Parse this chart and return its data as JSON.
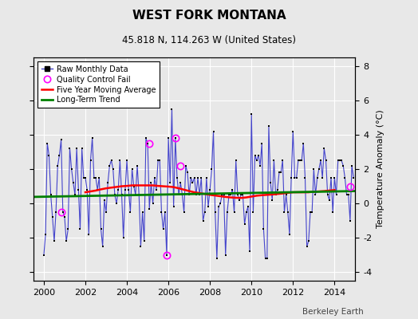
{
  "title": "WEST FORK MONTANA",
  "subtitle": "45.818 N, 114.263 W (United States)",
  "ylabel": "Temperature Anomaly (°C)",
  "attribution": "Berkeley Earth",
  "xlim": [
    1999.5,
    2015.0
  ],
  "ylim": [
    -4.5,
    8.5
  ],
  "yticks": [
    -4,
    -2,
    0,
    2,
    4,
    6,
    8
  ],
  "xticks": [
    2000,
    2002,
    2004,
    2006,
    2008,
    2010,
    2012,
    2014
  ],
  "bg_color": "#e8e8e8",
  "plot_bg_color": "#e8e8e8",
  "grid_color": "white",
  "raw_line_color": "#4444cc",
  "raw_marker_color": "black",
  "ma_color": "red",
  "trend_color": "green",
  "qc_fail_color": "magenta",
  "raw_months": [
    2000.0,
    2000.083,
    2000.167,
    2000.25,
    2000.333,
    2000.417,
    2000.5,
    2000.583,
    2000.667,
    2000.75,
    2000.833,
    2000.917,
    2001.0,
    2001.083,
    2001.167,
    2001.25,
    2001.333,
    2001.417,
    2001.5,
    2001.583,
    2001.667,
    2001.75,
    2001.833,
    2001.917,
    2002.0,
    2002.083,
    2002.167,
    2002.25,
    2002.333,
    2002.417,
    2002.5,
    2002.583,
    2002.667,
    2002.75,
    2002.833,
    2002.917,
    2003.0,
    2003.083,
    2003.167,
    2003.25,
    2003.333,
    2003.417,
    2003.5,
    2003.583,
    2003.667,
    2003.75,
    2003.833,
    2003.917,
    2004.0,
    2004.083,
    2004.167,
    2004.25,
    2004.333,
    2004.417,
    2004.5,
    2004.583,
    2004.667,
    2004.75,
    2004.833,
    2004.917,
    2005.0,
    2005.083,
    2005.167,
    2005.25,
    2005.333,
    2005.417,
    2005.5,
    2005.583,
    2005.667,
    2005.75,
    2005.833,
    2005.917,
    2006.0,
    2006.083,
    2006.167,
    2006.25,
    2006.333,
    2006.417,
    2006.5,
    2006.583,
    2006.667,
    2006.75,
    2006.833,
    2006.917,
    2007.0,
    2007.083,
    2007.167,
    2007.25,
    2007.333,
    2007.417,
    2007.5,
    2007.583,
    2007.667,
    2007.75,
    2007.833,
    2007.917,
    2008.0,
    2008.083,
    2008.167,
    2008.25,
    2008.333,
    2008.417,
    2008.5,
    2008.583,
    2008.667,
    2008.75,
    2008.833,
    2008.917,
    2009.0,
    2009.083,
    2009.167,
    2009.25,
    2009.333,
    2009.417,
    2009.5,
    2009.583,
    2009.667,
    2009.75,
    2009.833,
    2009.917,
    2010.0,
    2010.083,
    2010.167,
    2010.25,
    2010.333,
    2010.417,
    2010.5,
    2010.583,
    2010.667,
    2010.75,
    2010.833,
    2010.917,
    2011.0,
    2011.083,
    2011.167,
    2011.25,
    2011.333,
    2011.417,
    2011.5,
    2011.583,
    2011.667,
    2011.75,
    2011.833,
    2011.917,
    2012.0,
    2012.083,
    2012.167,
    2012.25,
    2012.333,
    2012.417,
    2012.5,
    2012.583,
    2012.667,
    2012.75,
    2012.833,
    2012.917,
    2013.0,
    2013.083,
    2013.167,
    2013.25,
    2013.333,
    2013.417,
    2013.5,
    2013.583,
    2013.667,
    2013.75,
    2013.833,
    2013.917,
    2014.0,
    2014.083,
    2014.167,
    2014.25,
    2014.333,
    2014.417,
    2014.5,
    2014.583,
    2014.667,
    2014.75,
    2014.833,
    2014.917
  ],
  "raw_values": [
    -3.0,
    -1.8,
    3.5,
    2.8,
    0.5,
    -0.8,
    -2.2,
    -0.5,
    2.2,
    2.8,
    3.7,
    -0.5,
    -0.8,
    -2.2,
    -1.5,
    3.2,
    2.0,
    1.2,
    0.5,
    3.2,
    0.8,
    -1.5,
    3.2,
    1.5,
    1.5,
    0.8,
    -1.8,
    2.5,
    3.8,
    1.5,
    1.5,
    0.8,
    1.5,
    -1.5,
    -2.5,
    0.2,
    -0.5,
    1.2,
    2.2,
    2.5,
    2.0,
    0.5,
    0.0,
    0.8,
    2.5,
    0.5,
    -2.0,
    0.8,
    2.5,
    0.8,
    -0.5,
    2.0,
    1.0,
    0.5,
    2.2,
    0.5,
    -2.5,
    -0.5,
    -2.2,
    3.8,
    3.5,
    -0.3,
    1.2,
    0.0,
    1.5,
    0.8,
    2.5,
    2.5,
    -0.5,
    -1.5,
    -0.5,
    -3.0,
    3.8,
    1.2,
    5.5,
    -0.2,
    3.8,
    1.5,
    0.5,
    1.2,
    0.5,
    -0.5,
    2.2,
    1.8,
    0.5,
    1.5,
    1.2,
    1.5,
    0.5,
    1.5,
    0.5,
    1.5,
    -1.0,
    -0.5,
    1.5,
    -0.2,
    0.8,
    2.0,
    4.2,
    -0.5,
    -3.2,
    -0.2,
    0.0,
    0.5,
    0.5,
    -3.0,
    -0.5,
    0.5,
    0.5,
    0.8,
    -0.5,
    2.5,
    0.5,
    0.2,
    0.5,
    0.5,
    -1.2,
    -0.5,
    -0.2,
    -2.8,
    5.2,
    -0.5,
    2.8,
    2.5,
    2.8,
    2.2,
    3.5,
    -1.5,
    -3.2,
    -3.2,
    4.5,
    1.2,
    0.2,
    2.5,
    0.5,
    0.8,
    1.8,
    1.8,
    2.5,
    -0.5,
    0.5,
    -0.5,
    -1.8,
    1.5,
    4.2,
    1.5,
    1.5,
    2.5,
    2.5,
    2.5,
    3.5,
    1.5,
    -2.5,
    -2.2,
    -0.5,
    -0.5,
    2.0,
    0.5,
    1.5,
    2.0,
    2.5,
    1.5,
    3.2,
    2.5,
    0.5,
    0.2,
    1.5,
    -0.5,
    1.5,
    0.5,
    2.5,
    2.5,
    2.5,
    2.2,
    1.5,
    0.5,
    0.5,
    -1.0,
    2.2,
    1.5
  ],
  "qc_fail_times": [
    2000.833,
    2005.083,
    2005.917,
    2006.333,
    2006.583,
    2014.75
  ],
  "qc_fail_values": [
    -0.5,
    3.5,
    -3.0,
    3.8,
    2.2,
    1.0
  ],
  "ma_times": [
    2002.0,
    2002.25,
    2002.5,
    2002.75,
    2003.0,
    2003.25,
    2003.5,
    2003.75,
    2004.0,
    2004.25,
    2004.5,
    2004.75,
    2005.0,
    2005.25,
    2005.5,
    2005.75,
    2006.0,
    2006.25,
    2006.5,
    2006.75,
    2007.0,
    2007.25,
    2007.5,
    2007.75,
    2008.0,
    2008.25,
    2008.5,
    2008.75,
    2009.0,
    2009.25,
    2009.5,
    2009.75,
    2010.0,
    2010.25,
    2010.5,
    2010.75,
    2011.0,
    2011.25,
    2011.5,
    2011.75,
    2012.0,
    2012.25,
    2012.5,
    2012.75,
    2013.0,
    2013.25,
    2013.5,
    2013.75,
    2014.0
  ],
  "ma_values": [
    0.65,
    0.7,
    0.75,
    0.82,
    0.88,
    0.92,
    0.96,
    1.0,
    1.02,
    1.05,
    1.05,
    1.05,
    1.05,
    1.05,
    1.02,
    1.0,
    0.98,
    0.95,
    0.88,
    0.8,
    0.72,
    0.65,
    0.6,
    0.55,
    0.5,
    0.46,
    0.42,
    0.38,
    0.35,
    0.33,
    0.32,
    0.35,
    0.4,
    0.45,
    0.48,
    0.5,
    0.52,
    0.55,
    0.58,
    0.62,
    0.65,
    0.65,
    0.65,
    0.65,
    0.68,
    0.7,
    0.72,
    0.75,
    0.78
  ],
  "trend_x": [
    1999.5,
    2015.0
  ],
  "trend_y": [
    0.38,
    0.72
  ]
}
